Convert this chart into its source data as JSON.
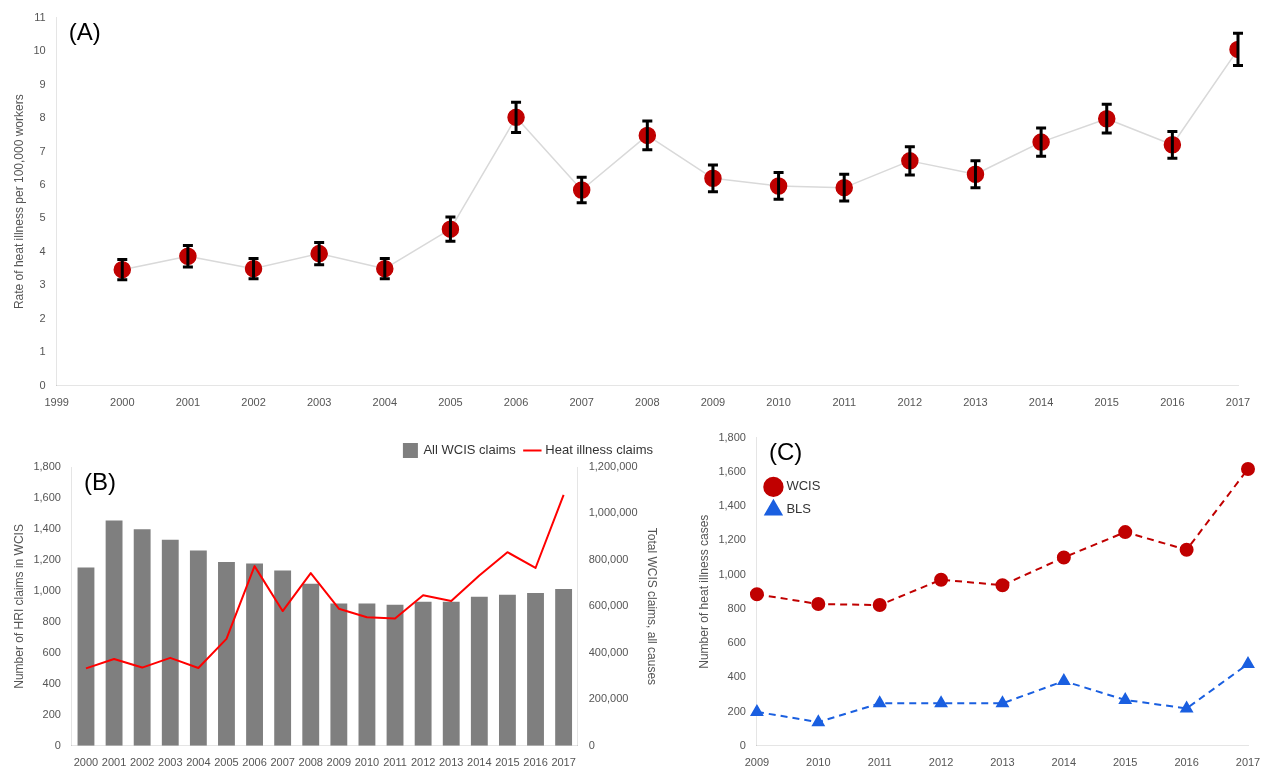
{
  "chart_data": [
    {
      "type": "line",
      "title": "(A)",
      "ylabel": "Rate of heat illness per 100,000 workers",
      "x": [
        2000,
        2001,
        2002,
        2003,
        2004,
        2005,
        2006,
        2007,
        2008,
        2009,
        2010,
        2011,
        2012,
        2013,
        2014,
        2015,
        2016,
        2017
      ],
      "xlim": [
        1999,
        2017
      ],
      "xticks": [
        1999,
        2000,
        2001,
        2002,
        2003,
        2004,
        2005,
        2006,
        2007,
        2008,
        2009,
        2010,
        2011,
        2012,
        2013,
        2014,
        2015,
        2016,
        2017
      ],
      "ylim": [
        0,
        11
      ],
      "yticks": [
        0,
        1,
        2,
        3,
        4,
        5,
        6,
        7,
        8,
        9,
        10,
        11
      ],
      "grid": false,
      "legend": false,
      "marker": "circle",
      "series": [
        {
          "color": "#c00000",
          "values": [
            3.47,
            3.87,
            3.5,
            3.95,
            3.5,
            4.68,
            8.02,
            5.85,
            7.48,
            6.2,
            5.97,
            5.92,
            6.72,
            6.32,
            7.28,
            7.98,
            7.2,
            10.05
          ],
          "errors": [
            0.3,
            0.32,
            0.3,
            0.33,
            0.3,
            0.36,
            0.45,
            0.38,
            0.43,
            0.4,
            0.4,
            0.4,
            0.42,
            0.4,
            0.42,
            0.43,
            0.4,
            0.48
          ]
        }
      ]
    },
    {
      "type": "bar",
      "title": "(B)",
      "ylabel": "Number of HRI claims in WCIS",
      "y2label": "Total WCIS claims, all causes",
      "categories": [
        "2000",
        "2001",
        "2002",
        "2003",
        "2004",
        "2005",
        "2006",
        "2007",
        "2008",
        "2009",
        "2010",
        "2011",
        "2012",
        "2013",
        "2014",
        "2015",
        "2016",
        "2017"
      ],
      "ylim": [
        0,
        1800
      ],
      "yticks": [
        0,
        200,
        400,
        600,
        800,
        {
          "value": 1000,
          "label": "1,000"
        },
        {
          "value": 1200,
          "label": "1,200"
        },
        {
          "value": 1400,
          "label": "1,400"
        },
        {
          "value": 1600,
          "label": "1,600"
        },
        {
          "value": 1800,
          "label": "1,800"
        }
      ],
      "y2lim": [
        0,
        1200000
      ],
      "y2ticks": [
        0,
        {
          "value": 200000,
          "label": "200,000"
        },
        {
          "value": 400000,
          "label": "400,000"
        },
        {
          "value": 600000,
          "label": "600,000"
        },
        {
          "value": 800000,
          "label": "800,000"
        },
        {
          "value": 1000000,
          "label": "1,000,000"
        },
        {
          "value": 1200000,
          "label": "1,200,000"
        }
      ],
      "grid": false,
      "legend": "top right",
      "series": [
        {
          "name": "All WCIS claims",
          "type": "bar",
          "axis": "y2",
          "color": "#7f7f7f",
          "values": [
            767000,
            970000,
            932000,
            887000,
            841000,
            791000,
            785000,
            755000,
            698000,
            613000,
            613000,
            607000,
            620000,
            620000,
            641000,
            650000,
            658000,
            675000
          ]
        },
        {
          "name": "Heat illness claims",
          "type": "line",
          "marker": "none",
          "color": "#ff0000",
          "values": [
            500,
            560,
            505,
            568,
            502,
            690,
            1160,
            870,
            1115,
            885,
            830,
            822,
            972,
            935,
            1100,
            1250,
            1148,
            1620
          ]
        }
      ]
    },
    {
      "type": "line",
      "title": "(C)",
      "ylabel": "Number of heat illness cases",
      "categories": [
        "2009",
        "2010",
        "2011",
        "2012",
        "2013",
        "2014",
        "2015",
        "2016",
        "2017"
      ],
      "ylim": [
        0,
        1800
      ],
      "yticks": [
        0,
        200,
        400,
        600,
        800,
        {
          "value": 1000,
          "label": "1,000"
        },
        {
          "value": 1200,
          "label": "1,200"
        },
        {
          "value": 1400,
          "label": "1,400"
        },
        {
          "value": 1600,
          "label": "1,600"
        },
        {
          "value": 1800,
          "label": "1,800"
        }
      ],
      "grid": false,
      "legend": "top left",
      "line_style": "dashed",
      "series": [
        {
          "name": "WCIS",
          "marker": "circle",
          "color": "#c00000",
          "values": [
            885,
            828,
            822,
            970,
            938,
            1100,
            1248,
            1145,
            1617
          ]
        },
        {
          "name": "BLS",
          "marker": "triangle",
          "color": "#1a5fe0",
          "values": [
            198,
            138,
            248,
            248,
            248,
            378,
            268,
            218,
            478
          ]
        }
      ]
    }
  ]
}
